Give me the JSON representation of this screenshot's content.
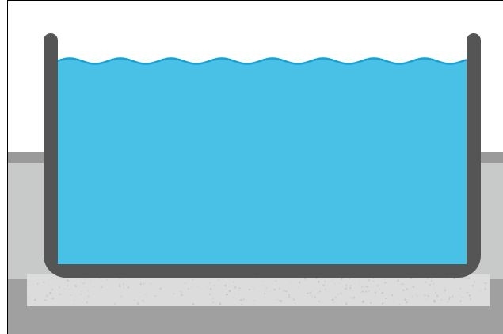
{
  "diagram": {
    "colors": {
      "background": "#ffffff",
      "frame": "#000000",
      "ground_top": "#9a9a9a",
      "ground_body": "#c8c9c9",
      "ground_lower": "#a0a0a0",
      "foundation": "#dcdcdc",
      "foundation_speckle": "#c2c2c2",
      "tank_wall": "#555555",
      "water": "#49c0e5",
      "water_surface": "#1a9fd6"
    },
    "elements": [
      "ground",
      "concrete-foundation",
      "tank",
      "water"
    ]
  }
}
